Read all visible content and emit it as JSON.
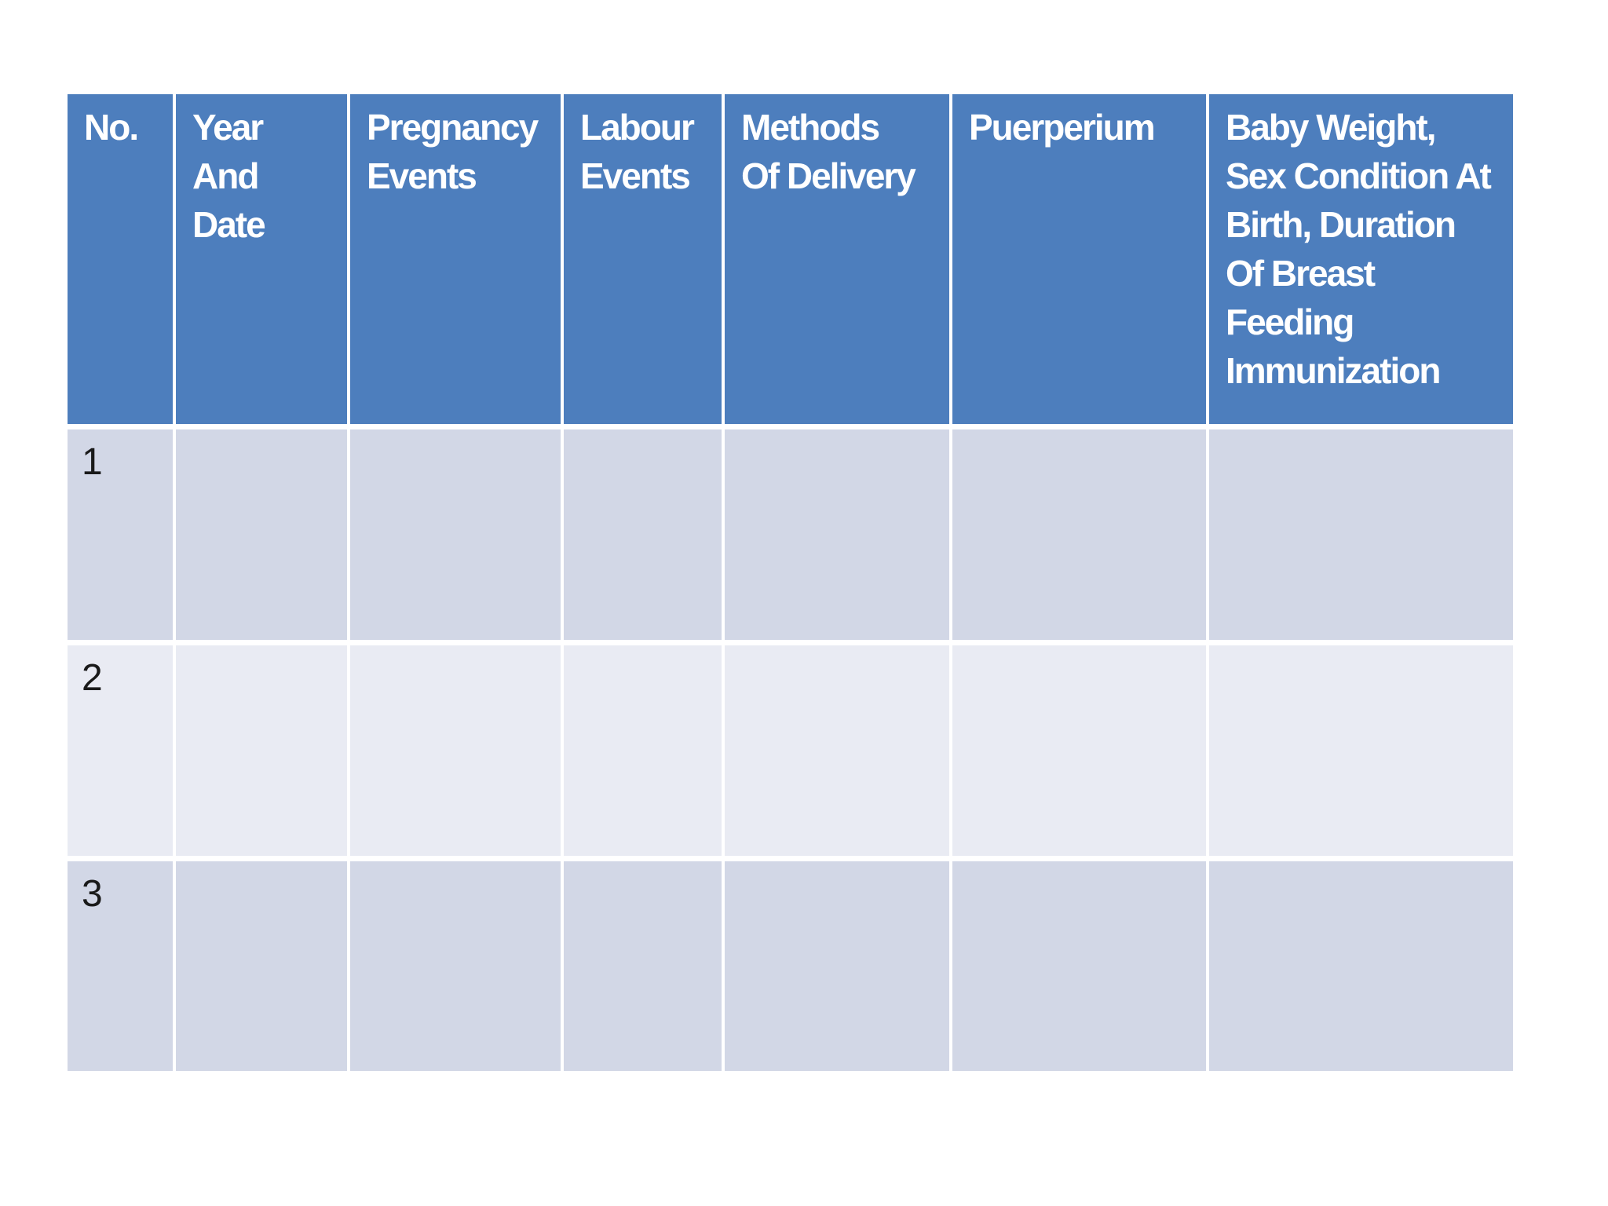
{
  "page": {
    "background": "#ffffff"
  },
  "colors": {
    "header_bg": "#4d7ebd",
    "header_text": "#ffffff",
    "row_odd_bg": "#d2d7e6",
    "row_even_bg": "#e9ebf3",
    "row_number_text": "#1a1a1a",
    "grid_gap": "#ffffff"
  },
  "table": {
    "header_cells": [
      {
        "label": "No.",
        "lines": [
          "No."
        ]
      },
      {
        "label": "Year And Date",
        "lines": [
          "Year",
          "And",
          "Date"
        ]
      },
      {
        "label": "Pregnancy Events",
        "lines": [
          "Pregnancy",
          "Events"
        ]
      },
      {
        "label": "Labour Events",
        "lines": [
          "Labour",
          "Events"
        ]
      },
      {
        "label": "Methods Of Delivery",
        "lines": [
          "Methods",
          "Of Delivery"
        ]
      },
      {
        "label": "Puerperium",
        "lines": [
          "Puerperium"
        ]
      },
      {
        "label": "Baby Weight, Sex Condition At Birth, Duration Of Breast Feeding Immunization",
        "lines": [
          "Baby Weight,",
          "Sex Condition At",
          "Birth, Duration",
          "Of Breast",
          "Feeding",
          "Immunization"
        ]
      }
    ],
    "rows": [
      {
        "no": "1",
        "cells": [
          "",
          "",
          "",
          "",
          "",
          ""
        ]
      },
      {
        "no": "2",
        "cells": [
          "",
          "",
          "",
          "",
          "",
          ""
        ]
      },
      {
        "no": "3",
        "cells": [
          "",
          "",
          "",
          "",
          "",
          ""
        ]
      }
    ]
  }
}
